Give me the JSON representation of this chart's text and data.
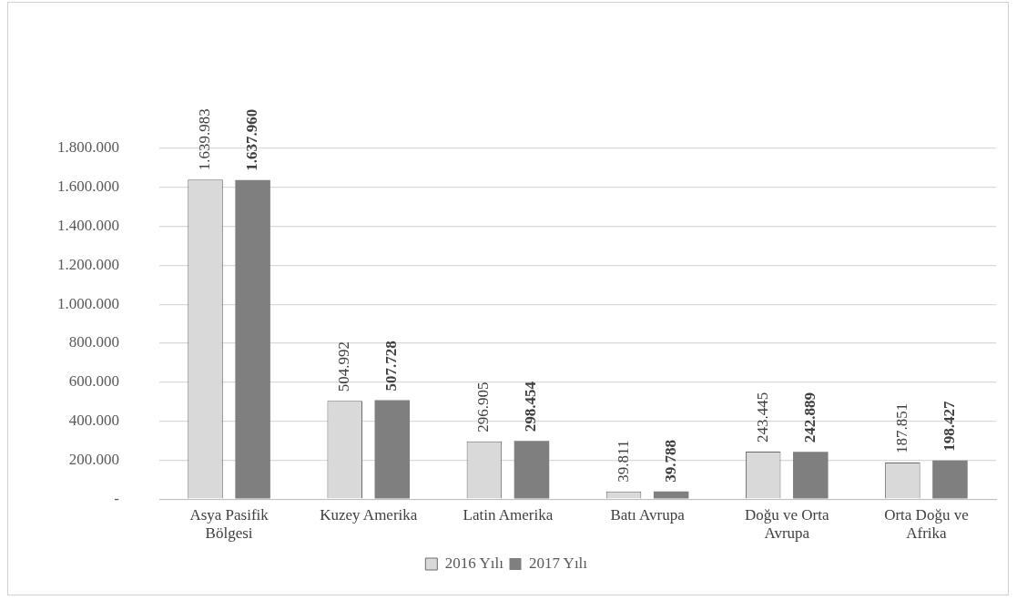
{
  "chart_data": {
    "type": "bar",
    "categories": [
      "Asya Pasifik Bölgesi",
      "Kuzey Amerika",
      "Latin Amerika",
      "Batı Avrupa",
      "Doğu ve Orta Avrupa",
      "Orta Doğu ve Afrika"
    ],
    "series": [
      {
        "name": "2016 Yılı",
        "color": "#d9d9d9",
        "values": [
          1639983,
          504992,
          296905,
          39811,
          243445,
          187851
        ],
        "value_labels": [
          "1.639.983",
          "504.992",
          "296.905",
          "39.811",
          "243.445",
          "187.851"
        ]
      },
      {
        "name": "2017 Yılı",
        "color": "#7f7f7f",
        "values": [
          1637960,
          507728,
          298454,
          39788,
          242889,
          198427
        ],
        "value_labels": [
          "1.637.960",
          "507.728",
          "298.454",
          "39.788",
          "242.889",
          "198.427"
        ]
      }
    ],
    "ylim": [
      0,
      1800000
    ],
    "yticks": [
      {
        "value": 0,
        "label": "-"
      },
      {
        "value": 200000,
        "label": "200.000"
      },
      {
        "value": 400000,
        "label": "400.000"
      },
      {
        "value": 600000,
        "label": "600.000"
      },
      {
        "value": 800000,
        "label": "800.000"
      },
      {
        "value": 1000000,
        "label": "1.000.000"
      },
      {
        "value": 1200000,
        "label": "1.200.000"
      },
      {
        "value": 1400000,
        "label": "1.400.000"
      },
      {
        "value": 1600000,
        "label": "1.600.000"
      },
      {
        "value": 1800000,
        "label": "1.800.000"
      }
    ],
    "grid": "y",
    "legend": "bottom"
  }
}
